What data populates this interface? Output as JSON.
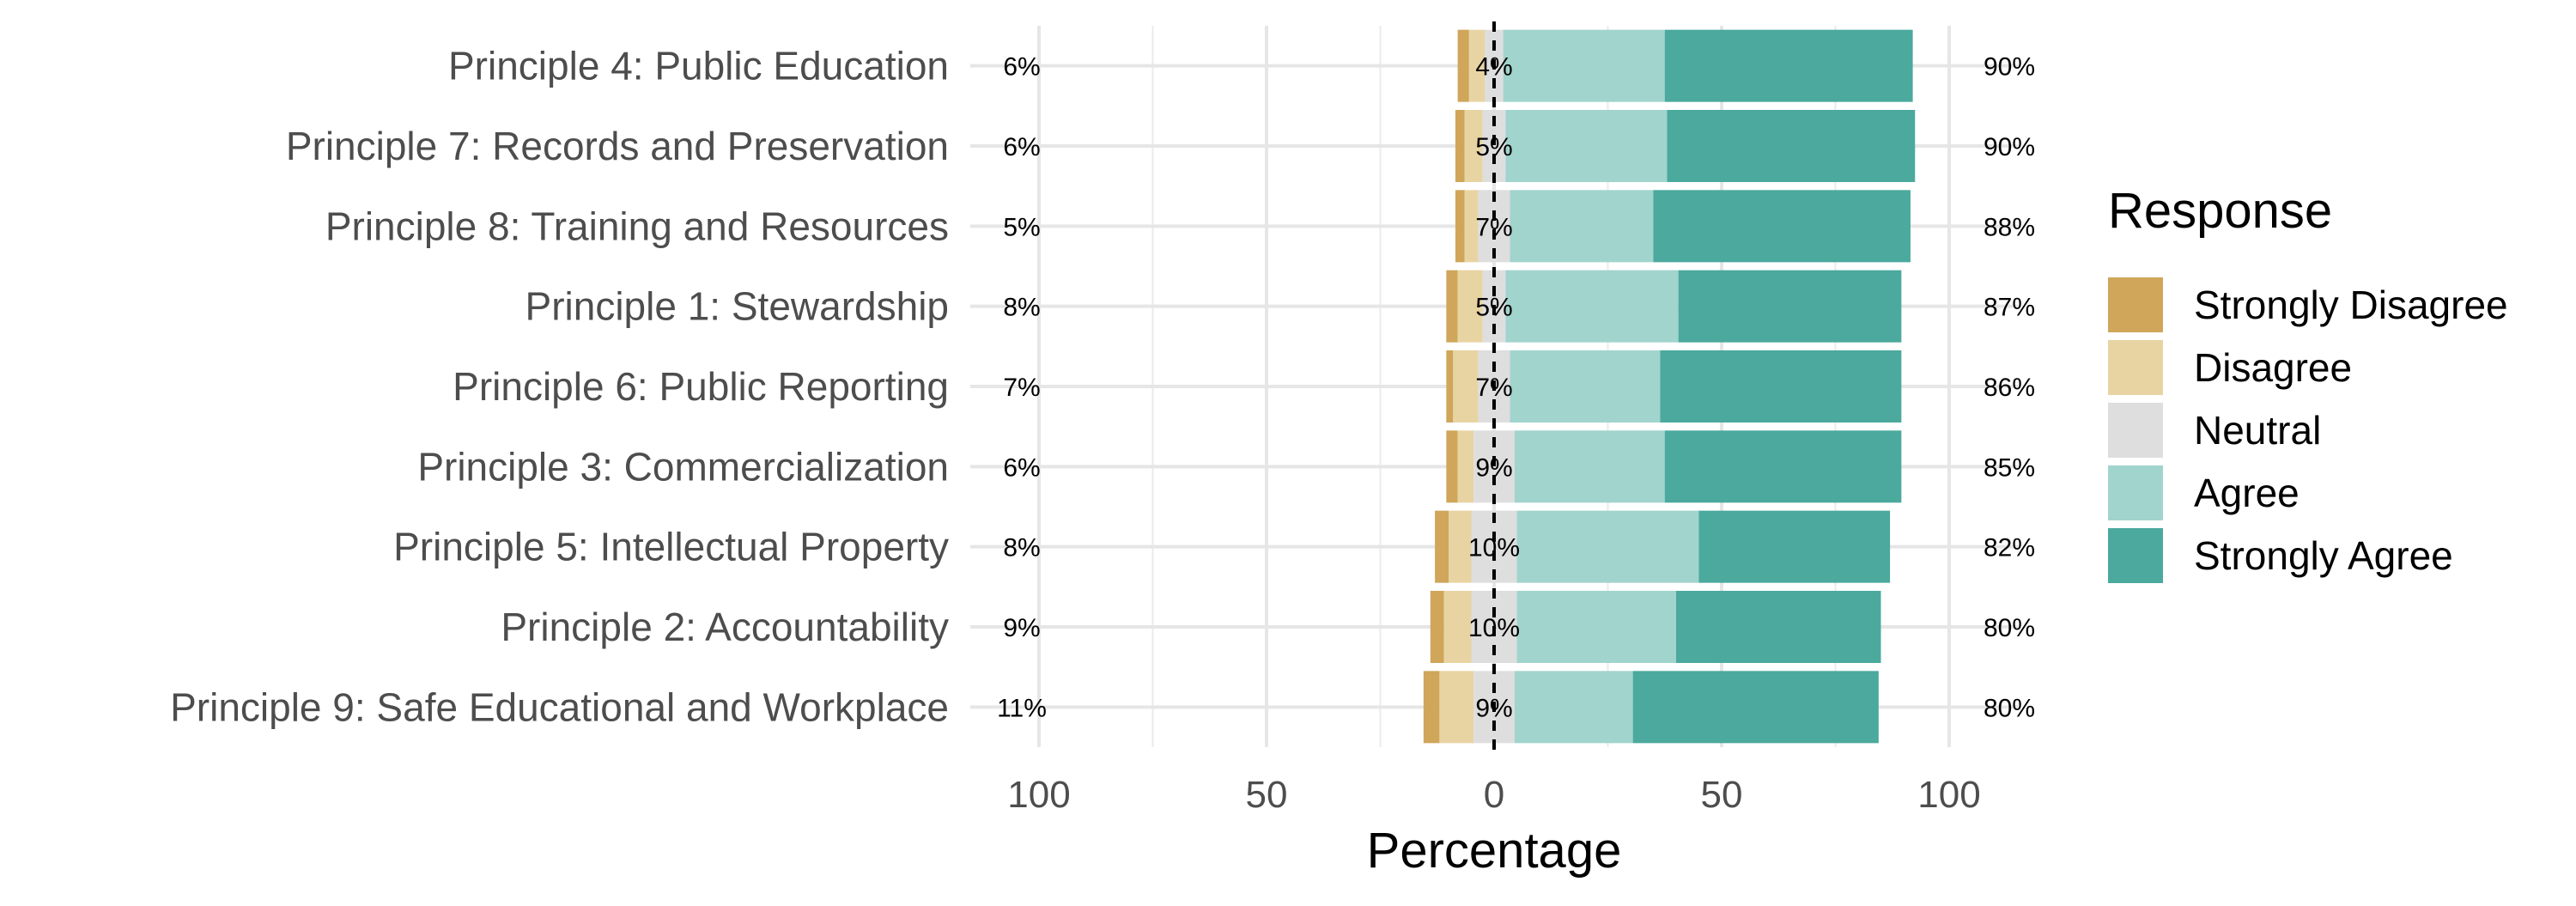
{
  "chart_data": {
    "type": "bar",
    "subtype": "diverging-stacked-likert",
    "title": "",
    "xlabel": "Percentage",
    "ylabel": "",
    "xlim": [
      -100,
      100
    ],
    "x_ticks": [
      -100,
      -50,
      0,
      50,
      100
    ],
    "x_tick_labels": [
      "100",
      "50",
      "0",
      "50",
      "100"
    ],
    "grid": true,
    "legend": {
      "title": "Response",
      "position": "right"
    },
    "zero_line": "dashed",
    "categories": [
      "Principle 4: Public Education",
      "Principle 7: Records and Preservation",
      "Principle 8: Training and Resources",
      "Principle 1: Stewardship",
      "Principle 6: Public Reporting",
      "Principle 3: Commercialization",
      "Principle 5: Intellectual Property",
      "Principle 2: Accountability",
      "Principle 9: Safe Educational and Workplace"
    ],
    "series": [
      {
        "name": "Strongly Disagree",
        "color": "#CFA65A",
        "values": [
          2.5,
          2,
          2,
          2.5,
          1.5,
          2.5,
          3,
          3,
          3.5
        ]
      },
      {
        "name": "Disagree",
        "color": "#E8D4A3",
        "values": [
          3.5,
          4,
          3,
          5.5,
          5.5,
          3.5,
          5,
          6,
          7.5
        ]
      },
      {
        "name": "Neutral",
        "color": "#DEDEDE",
        "values": [
          4,
          5,
          7,
          5,
          7,
          9,
          10,
          10,
          9
        ]
      },
      {
        "name": "Agree",
        "color": "#A1D4CD",
        "values": [
          35.5,
          35.5,
          31.5,
          38,
          33,
          33,
          40,
          35,
          26
        ]
      },
      {
        "name": "Strongly Agree",
        "color": "#4BA99D",
        "values": [
          54.5,
          54.5,
          56.5,
          49,
          53,
          52,
          42,
          45,
          54
        ]
      }
    ],
    "left_labels": [
      "6%",
      "6%",
      "5%",
      "8%",
      "7%",
      "6%",
      "8%",
      "9%",
      "11%"
    ],
    "center_labels": [
      "4%",
      "5%",
      "7%",
      "5%",
      "7%",
      "9%",
      "10%",
      "10%",
      "9%"
    ],
    "right_labels": [
      "90%",
      "90%",
      "88%",
      "87%",
      "86%",
      "85%",
      "82%",
      "80%",
      "80%"
    ]
  }
}
